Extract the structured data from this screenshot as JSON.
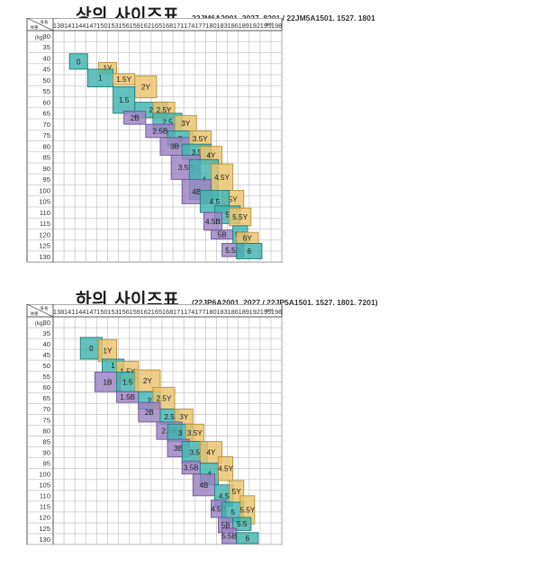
{
  "charts": [
    {
      "title": "상의 사이즈표",
      "codes": "22JM6A2001. 2027. 8201 / 22JM5A1501. 1527. 1801",
      "corner_top": "身長",
      "corner_bottom": "体重",
      "unit_right": "(cm)",
      "unit_left": "(kg)",
      "heights": [
        "138",
        "141",
        "144",
        "147",
        "150",
        "153",
        "156",
        "159",
        "162",
        "165",
        "168",
        "171",
        "174",
        "177",
        "180",
        "183",
        "186",
        "189",
        "192",
        "195",
        "198"
      ],
      "weights": [
        "30",
        "35",
        "40",
        "45",
        "50",
        "55",
        "60",
        "65",
        "70",
        "75",
        "80",
        "85",
        "90",
        "95",
        "100",
        "105",
        "110",
        "115",
        "120",
        "125",
        "130"
      ],
      "sizes": [
        {
          "label": "0",
          "color": "teal",
          "h": [
            141,
            146
          ],
          "w": [
            38,
            45
          ]
        },
        {
          "label": "1Y",
          "color": "yellow",
          "h": [
            149,
            154
          ],
          "w": [
            42,
            47
          ]
        },
        {
          "label": "1",
          "color": "teal",
          "h": [
            146,
            153
          ],
          "w": [
            45,
            53
          ]
        },
        {
          "label": "1.5Y",
          "color": "yellow",
          "h": [
            153,
            159
          ],
          "w": [
            47,
            52
          ]
        },
        {
          "label": "2Y",
          "color": "yellow",
          "h": [
            159,
            165
          ],
          "w": [
            48,
            58
          ]
        },
        {
          "label": "1.5",
          "color": "teal",
          "h": [
            153,
            159
          ],
          "w": [
            53,
            65
          ]
        },
        {
          "label": "2",
          "color": "teal",
          "h": [
            159,
            168
          ],
          "w": [
            60,
            67
          ]
        },
        {
          "label": "2.5Y",
          "color": "yellow",
          "h": [
            164,
            170
          ],
          "w": [
            60,
            67
          ]
        },
        {
          "label": "2B",
          "color": "purple",
          "h": [
            156,
            162
          ],
          "w": [
            64,
            70
          ]
        },
        {
          "label": "2.5",
          "color": "teal",
          "h": [
            164,
            172
          ],
          "w": [
            65,
            73
          ]
        },
        {
          "label": "2.5B",
          "color": "purple",
          "h": [
            162,
            170
          ],
          "w": [
            70,
            76
          ]
        },
        {
          "label": "3Y",
          "color": "yellow",
          "h": [
            170,
            176
          ],
          "w": [
            66,
            73
          ]
        },
        {
          "label": "3",
          "color": "teal",
          "h": [
            168,
            175
          ],
          "w": [
            73,
            80
          ]
        },
        {
          "label": "3B",
          "color": "purple",
          "h": [
            166,
            174
          ],
          "w": [
            76,
            84
          ]
        },
        {
          "label": "3.5Y",
          "color": "yellow",
          "h": [
            174,
            180
          ],
          "w": [
            73,
            80
          ]
        },
        {
          "label": "3.5",
          "color": "teal",
          "h": [
            172,
            180
          ],
          "w": [
            79,
            86
          ]
        },
        {
          "label": "4Y",
          "color": "yellow",
          "h": [
            177,
            183
          ],
          "w": [
            80,
            88
          ]
        },
        {
          "label": "3.5B",
          "color": "purple",
          "h": [
            169,
            177
          ],
          "w": [
            84,
            95
          ]
        },
        {
          "label": "4",
          "color": "teal",
          "h": [
            174,
            182
          ],
          "w": [
            86,
            104
          ]
        },
        {
          "label": "4.5Y",
          "color": "yellow",
          "h": [
            180,
            186
          ],
          "w": [
            88,
            100
          ]
        },
        {
          "label": "4B",
          "color": "purple",
          "h": [
            172,
            180
          ],
          "w": [
            95,
            106
          ]
        },
        {
          "label": "5Y",
          "color": "yellow",
          "h": [
            183,
            189
          ],
          "w": [
            100,
            108
          ]
        },
        {
          "label": "4.5",
          "color": "teal",
          "h": [
            177,
            185
          ],
          "w": [
            100,
            110
          ]
        },
        {
          "label": "5",
          "color": "teal",
          "h": [
            181,
            188
          ],
          "w": [
            107,
            115
          ]
        },
        {
          "label": "5.5Y",
          "color": "yellow",
          "h": [
            185,
            191
          ],
          "w": [
            108,
            116
          ]
        },
        {
          "label": "4.5B",
          "color": "purple",
          "h": [
            178,
            183
          ],
          "w": [
            110,
            118
          ]
        },
        {
          "label": "5B",
          "color": "purple",
          "h": [
            180,
            186
          ],
          "w": [
            118,
            122
          ]
        },
        {
          "label": "5.5",
          "color": "teal",
          "h": [
            186,
            190
          ],
          "w": [
            116,
            124
          ]
        },
        {
          "label": "6Y",
          "color": "yellow",
          "h": [
            187,
            193
          ],
          "w": [
            119,
            124
          ]
        },
        {
          "label": "5.5B",
          "color": "purple",
          "h": [
            183,
            189
          ],
          "w": [
            124,
            130
          ]
        },
        {
          "label": "6",
          "color": "teal",
          "h": [
            187,
            194
          ],
          "w": [
            124,
            131
          ]
        }
      ]
    },
    {
      "title": "하의 사이즈표",
      "codes": "(22JP6A2001. 2027 / 22JP5A1501. 1527. 1801. 7201)",
      "corner_top": "身長",
      "corner_bottom": "体重",
      "unit_right": "(cm)",
      "unit_left": "(kg)",
      "heights": [
        "138",
        "141",
        "144",
        "147",
        "150",
        "153",
        "156",
        "159",
        "162",
        "165",
        "168",
        "171",
        "174",
        "177",
        "180",
        "183",
        "186",
        "189",
        "192",
        "195",
        "198"
      ],
      "weights": [
        "30",
        "35",
        "40",
        "45",
        "50",
        "55",
        "60",
        "65",
        "70",
        "75",
        "80",
        "85",
        "90",
        "95",
        "100",
        "105",
        "110",
        "115",
        "120",
        "125",
        "130"
      ],
      "sizes": [
        {
          "label": "0",
          "color": "teal",
          "h": [
            144,
            150
          ],
          "w": [
            37,
            47
          ]
        },
        {
          "label": "1Y",
          "color": "yellow",
          "h": [
            149,
            154
          ],
          "w": [
            38,
            48
          ]
        },
        {
          "label": "1",
          "color": "teal",
          "h": [
            150,
            156
          ],
          "w": [
            47,
            53
          ]
        },
        {
          "label": "1.5Y",
          "color": "yellow",
          "h": [
            154,
            160
          ],
          "w": [
            48,
            57
          ]
        },
        {
          "label": "1B",
          "color": "purple",
          "h": [
            148,
            155
          ],
          "w": [
            53,
            62
          ]
        },
        {
          "label": "1.5",
          "color": "teal",
          "h": [
            154,
            160
          ],
          "w": [
            53,
            62
          ]
        },
        {
          "label": "2Y",
          "color": "yellow",
          "h": [
            159,
            166
          ],
          "w": [
            52,
            62
          ]
        },
        {
          "label": "1.5B",
          "color": "purple",
          "h": [
            154,
            160
          ],
          "w": [
            62,
            67
          ]
        },
        {
          "label": "2",
          "color": "teal",
          "h": [
            160,
            166
          ],
          "w": [
            62,
            70
          ]
        },
        {
          "label": "2.5Y",
          "color": "yellow",
          "h": [
            164,
            170
          ],
          "w": [
            60,
            70
          ]
        },
        {
          "label": "2B",
          "color": "purple",
          "h": [
            160,
            166
          ],
          "w": [
            67,
            76
          ]
        },
        {
          "label": "2.5",
          "color": "teal",
          "h": [
            166,
            171
          ],
          "w": [
            70,
            77
          ]
        },
        {
          "label": "3Y",
          "color": "yellow",
          "h": [
            170,
            175
          ],
          "w": [
            70,
            77
          ]
        },
        {
          "label": "2.5B",
          "color": "purple",
          "h": [
            165,
            172
          ],
          "w": [
            76,
            84
          ]
        },
        {
          "label": "3",
          "color": "teal",
          "h": [
            168,
            175
          ],
          "w": [
            77,
            85
          ]
        },
        {
          "label": "3.5Y",
          "color": "yellow",
          "h": [
            173,
            178
          ],
          "w": [
            77,
            85
          ]
        },
        {
          "label": "3B",
          "color": "purple",
          "h": [
            168,
            174
          ],
          "w": [
            84,
            92
          ]
        },
        {
          "label": "3.5",
          "color": "teal",
          "h": [
            172,
            179
          ],
          "w": [
            85,
            95
          ]
        },
        {
          "label": "4Y",
          "color": "yellow",
          "h": [
            177,
            183
          ],
          "w": [
            85,
            95
          ]
        },
        {
          "label": "3.5B",
          "color": "purple",
          "h": [
            172,
            177
          ],
          "w": [
            94,
            100
          ]
        },
        {
          "label": "4",
          "color": "teal",
          "h": [
            177,
            182
          ],
          "w": [
            95,
            105
          ]
        },
        {
          "label": "4.5Y",
          "color": "yellow",
          "h": [
            182,
            186
          ],
          "w": [
            92,
            103
          ]
        },
        {
          "label": "4B",
          "color": "purple",
          "h": [
            175,
            181
          ],
          "w": [
            100,
            110
          ]
        },
        {
          "label": "4.5",
          "color": "teal",
          "h": [
            181,
            186
          ],
          "w": [
            105,
            115
          ]
        },
        {
          "label": "5Y",
          "color": "yellow",
          "h": [
            185,
            189
          ],
          "w": [
            103,
            113
          ]
        },
        {
          "label": "4.5B",
          "color": "purple",
          "h": [
            180,
            184
          ],
          "w": [
            112,
            120
          ]
        },
        {
          "label": "5",
          "color": "teal",
          "h": [
            183,
            189
          ],
          "w": [
            113,
            122
          ]
        },
        {
          "label": "5.5Y",
          "color": "yellow",
          "h": [
            188,
            192
          ],
          "w": [
            110,
            123
          ]
        },
        {
          "label": "5B",
          "color": "purple",
          "h": [
            182,
            186
          ],
          "w": [
            120,
            127
          ]
        },
        {
          "label": "5.5",
          "color": "teal",
          "h": [
            186,
            191
          ],
          "w": [
            120,
            126
          ]
        },
        {
          "label": "5.5B",
          "color": "purple",
          "h": [
            183,
            187
          ],
          "w": [
            125,
            132
          ]
        },
        {
          "label": "6",
          "color": "teal",
          "h": [
            187,
            193
          ],
          "w": [
            127,
            132
          ]
        }
      ]
    }
  ],
  "colors": {
    "teal": "#42b4b0",
    "yellow": "#ecc36e",
    "purple": "#9c83c2",
    "grid": "#c9c9c9",
    "frame": "#555555"
  }
}
